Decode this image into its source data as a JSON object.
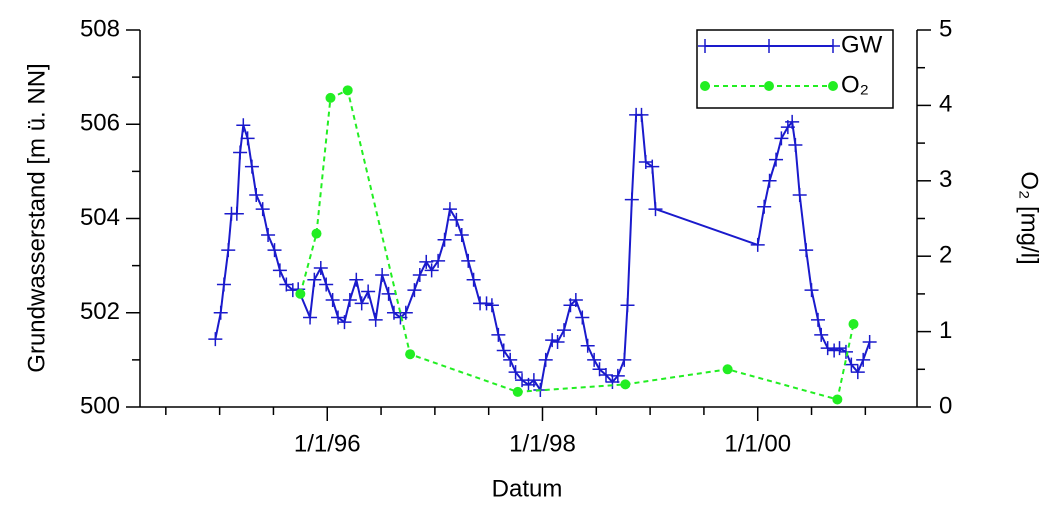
{
  "chart_data": {
    "type": "line",
    "x_label": "Datum",
    "y_label": "Grundwasserstand [m ü. NN]",
    "y2_label": "O₂ [mg/l]",
    "xlim": [
      1994.26,
      2001.48
    ],
    "xticks": [
      {
        "value": 1996,
        "label": "1/1/96"
      },
      {
        "value": 1998,
        "label": "1/1/98"
      },
      {
        "value": 2000,
        "label": "1/1/00"
      }
    ],
    "xminor_ticks": [
      1994.5,
      1995,
      1995.5,
      1996.5,
      1997,
      1997.5,
      1998.5,
      1999,
      1999.5,
      2000.5,
      2001
    ],
    "ylim": [
      500,
      508
    ],
    "yticks": [
      500,
      502,
      504,
      506,
      508
    ],
    "yminor_ticks": [
      501,
      503,
      505,
      507
    ],
    "y2lim": [
      0,
      5
    ],
    "y2ticks": [
      0,
      1,
      2,
      3,
      4,
      5
    ],
    "y2minor_ticks": [
      0.5,
      1.5,
      2.5,
      3.5,
      4.5
    ],
    "legend": "upper right",
    "series": [
      {
        "name": "GW",
        "color": "#1a1acc",
        "marker": "plus",
        "dash": "solid",
        "x": [
          1994.96,
          1995.01,
          1995.04,
          1995.08,
          1995.11,
          1995.16,
          1995.19,
          1995.22,
          1995.26,
          1995.3,
          1995.34,
          1995.4,
          1995.45,
          1995.51,
          1995.56,
          1995.62,
          1995.68,
          1995.73,
          1995.84,
          1995.88,
          1995.94,
          1995.99,
          1996.05,
          1996.1,
          1996.16,
          1996.21,
          1996.27,
          1996.32,
          1996.38,
          1996.45,
          1996.51,
          1996.57,
          1996.62,
          1996.68,
          1996.73,
          1996.81,
          1996.86,
          1996.92,
          1996.97,
          1997.03,
          1997.09,
          1997.14,
          1997.2,
          1997.25,
          1997.31,
          1997.36,
          1997.42,
          1997.48,
          1997.53,
          1997.59,
          1997.64,
          1997.7,
          1997.75,
          1997.81,
          1997.87,
          1997.92,
          1997.98,
          1998.03,
          1998.09,
          1998.14,
          1998.2,
          1998.26,
          1998.31,
          1998.37,
          1998.42,
          1998.48,
          1998.53,
          1998.59,
          1998.65,
          1998.7,
          1998.76,
          1998.79,
          1998.83,
          1998.87,
          1998.92,
          1998.96,
          1999.02,
          1999.05,
          2000.0,
          2000.06,
          2000.11,
          2000.17,
          2000.22,
          2000.28,
          2000.32,
          2000.35,
          2000.39,
          2000.45,
          2000.5,
          2000.56,
          2000.59,
          2000.65,
          2000.71,
          2000.76,
          2000.82,
          2000.87,
          2000.93,
          2000.98,
          2001.04
        ],
        "values": [
          501.44,
          502.0,
          502.6,
          503.33,
          504.1,
          504.1,
          505.4,
          505.98,
          505.7,
          505.1,
          504.5,
          504.2,
          503.65,
          503.33,
          502.9,
          502.6,
          502.48,
          502.5,
          501.9,
          502.7,
          502.95,
          502.6,
          502.27,
          501.9,
          501.8,
          502.27,
          502.7,
          502.2,
          502.45,
          501.85,
          502.8,
          502.4,
          502.0,
          501.9,
          502.0,
          502.48,
          502.8,
          503.08,
          502.9,
          503.1,
          503.55,
          504.2,
          503.97,
          503.65,
          503.1,
          502.7,
          502.2,
          502.2,
          502.16,
          501.53,
          501.2,
          501.0,
          500.74,
          500.57,
          500.47,
          500.57,
          500.36,
          501.0,
          501.42,
          501.38,
          501.63,
          502.16,
          502.27,
          501.9,
          501.3,
          501.0,
          500.8,
          500.68,
          500.53,
          500.66,
          501.0,
          502.16,
          504.4,
          506.2,
          506.2,
          505.2,
          505.1,
          504.2,
          503.44,
          504.25,
          504.8,
          505.25,
          505.7,
          505.94,
          506.05,
          505.56,
          504.5,
          503.33,
          502.48,
          501.85,
          501.53,
          501.25,
          501.2,
          501.25,
          501.17,
          500.9,
          500.74,
          501.0,
          501.38
        ]
      },
      {
        "name": "O₂",
        "color": "#22ee22",
        "marker": "circle",
        "dash": "dashed",
        "axis": "y2",
        "x": [
          1995.75,
          1995.9,
          1996.03,
          1996.19,
          1996.77,
          1997.77,
          1998.77,
          1999.72,
          2000.74,
          2000.89
        ],
        "values": [
          1.5,
          2.3,
          4.1,
          4.2,
          0.7,
          0.2,
          0.3,
          0.5,
          0.1,
          1.1
        ]
      }
    ]
  }
}
